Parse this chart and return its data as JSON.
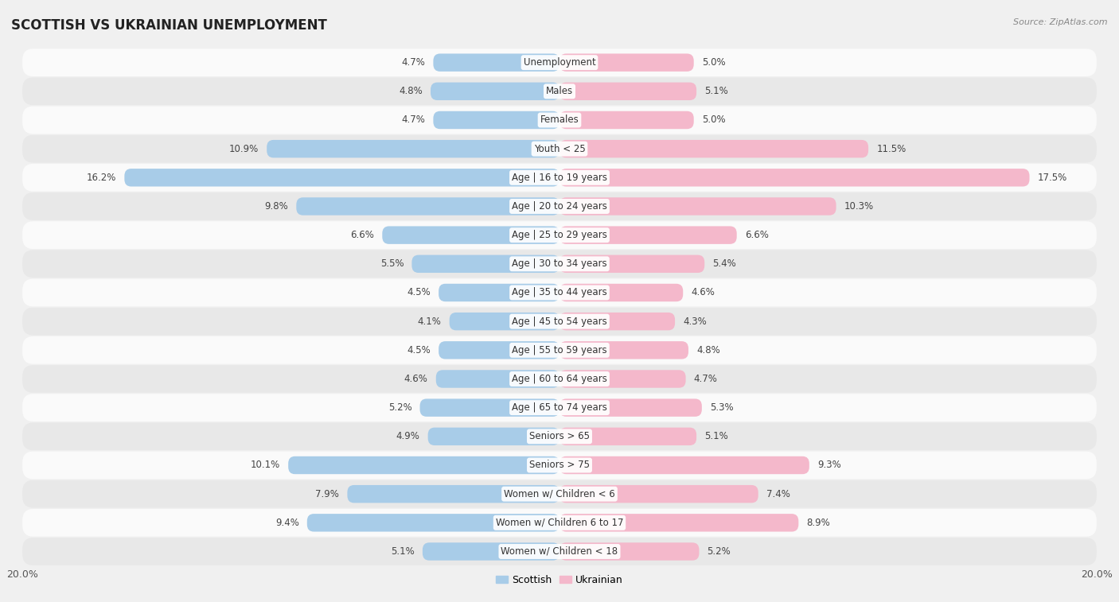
{
  "title": "SCOTTISH VS UKRAINIAN UNEMPLOYMENT",
  "source": "Source: ZipAtlas.com",
  "categories": [
    "Unemployment",
    "Males",
    "Females",
    "Youth < 25",
    "Age | 16 to 19 years",
    "Age | 20 to 24 years",
    "Age | 25 to 29 years",
    "Age | 30 to 34 years",
    "Age | 35 to 44 years",
    "Age | 45 to 54 years",
    "Age | 55 to 59 years",
    "Age | 60 to 64 years",
    "Age | 65 to 74 years",
    "Seniors > 65",
    "Seniors > 75",
    "Women w/ Children < 6",
    "Women w/ Children 6 to 17",
    "Women w/ Children < 18"
  ],
  "scottish": [
    4.7,
    4.8,
    4.7,
    10.9,
    16.2,
    9.8,
    6.6,
    5.5,
    4.5,
    4.1,
    4.5,
    4.6,
    5.2,
    4.9,
    10.1,
    7.9,
    9.4,
    5.1
  ],
  "ukrainian": [
    5.0,
    5.1,
    5.0,
    11.5,
    17.5,
    10.3,
    6.6,
    5.4,
    4.6,
    4.3,
    4.8,
    4.7,
    5.3,
    5.1,
    9.3,
    7.4,
    8.9,
    5.2
  ],
  "scottish_color": "#a8cce8",
  "ukrainian_color": "#f4b8cb",
  "axis_max": 20.0,
  "background_color": "#f0f0f0",
  "row_bg_light": "#fafafa",
  "row_bg_dark": "#e8e8e8",
  "label_fontsize": 8.5,
  "title_fontsize": 12,
  "source_fontsize": 8
}
